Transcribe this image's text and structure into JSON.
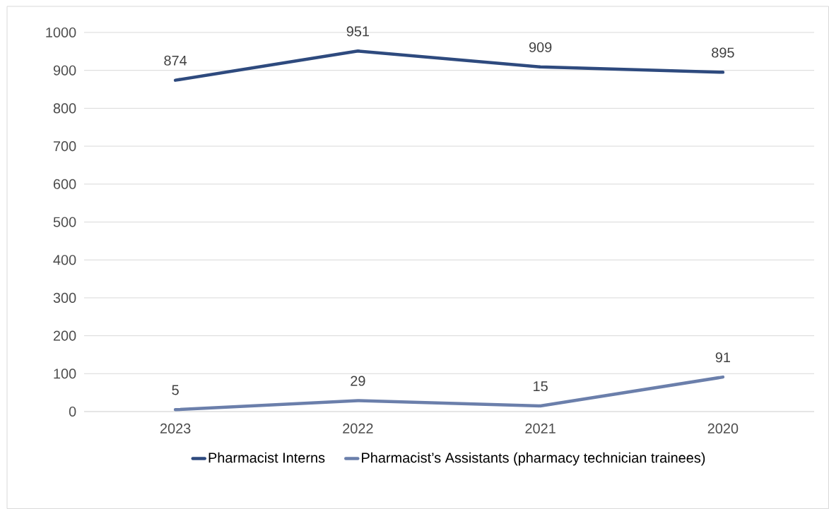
{
  "chart_data": {
    "type": "line",
    "categories": [
      "2023",
      "2022",
      "2021",
      "2020"
    ],
    "series": [
      {
        "name": "Pharmacist Interns",
        "color": "#2e4a7e",
        "values": [
          874,
          951,
          909,
          895
        ]
      },
      {
        "name": "Pharmacist’s Assistants (pharmacy technician trainees)",
        "color": "#6b7fab",
        "values": [
          5,
          29,
          15,
          91
        ]
      }
    ],
    "ylim": [
      0,
      1000
    ],
    "yticks": [
      0,
      100,
      200,
      300,
      400,
      500,
      600,
      700,
      800,
      900,
      1000
    ],
    "grid": "y",
    "legend": "bottom",
    "data_labels": true,
    "marker": "none",
    "line_style": "solid"
  }
}
